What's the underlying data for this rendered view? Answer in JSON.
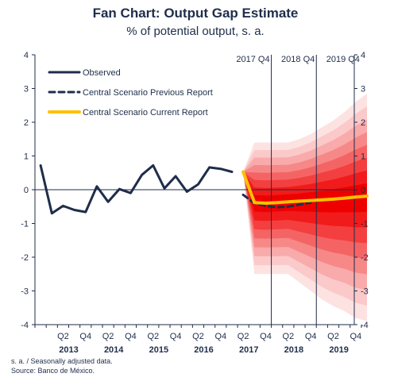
{
  "chart_data": {
    "type": "line",
    "title": "Fan Chart: Output Gap Estimate",
    "subtitle": "% of potential output, s. a.",
    "ylim": [
      -4,
      4
    ],
    "yticks": [
      -4,
      -3,
      -2,
      -1,
      0,
      1,
      2,
      3,
      4
    ],
    "x_quarter_labels": [
      "Q2",
      "Q4",
      "Q2",
      "Q4",
      "Q2",
      "Q4",
      "Q2",
      "Q4",
      "Q2",
      "Q4",
      "Q2",
      "Q4",
      "Q2",
      "Q4"
    ],
    "x_year_labels": [
      "2013",
      "2014",
      "2015",
      "2016",
      "2017",
      "2018",
      "2019"
    ],
    "vertical_markers": [
      "2017 Q4",
      "2018 Q4",
      "2019 Q4"
    ],
    "x_periods": [
      "2012Q4",
      "2013Q1",
      "2013Q2",
      "2013Q3",
      "2013Q4",
      "2014Q1",
      "2014Q2",
      "2014Q3",
      "2014Q4",
      "2015Q1",
      "2015Q2",
      "2015Q3",
      "2015Q4",
      "2016Q1",
      "2016Q2",
      "2016Q3",
      "2016Q4",
      "2017Q1",
      "2017Q2",
      "2017Q3",
      "2017Q4",
      "2018Q1",
      "2018Q2",
      "2018Q3",
      "2018Q4",
      "2019Q1",
      "2019Q2",
      "2019Q3",
      "2019Q4"
    ],
    "series": [
      {
        "name": "Observed",
        "color": "#1f2d4a",
        "style": "solid",
        "start_period": "2012Q4",
        "values": [
          0.72,
          -0.7,
          -0.48,
          -0.6,
          -0.66,
          0.1,
          -0.36,
          0.02,
          -0.1,
          0.44,
          0.72,
          0.04,
          0.4,
          -0.06,
          0.16,
          0.66,
          0.62,
          0.53
        ]
      },
      {
        "name": "Central Scenario Previous Report",
        "color": "#1f2d4a",
        "style": "dashed",
        "start_period": "2017Q2",
        "values": [
          -0.15,
          -0.4,
          -0.48,
          -0.52,
          -0.5,
          -0.44,
          -0.38
        ]
      },
      {
        "name": "Central Scenario Current Report",
        "color": "#ffc000",
        "style": "solid",
        "start_period": "2017Q2",
        "values": [
          0.53,
          -0.38,
          -0.4,
          -0.38,
          -0.36,
          -0.34,
          -0.32,
          -0.3,
          -0.28,
          -0.25,
          -0.22,
          -0.19
        ]
      }
    ],
    "fan": {
      "start_period": "2017Q2",
      "upper": [
        0.53,
        1.4,
        1.4,
        1.4,
        1.4,
        1.5,
        1.65,
        1.85,
        2.05,
        2.3,
        2.6,
        2.85
      ],
      "lower": [
        0.53,
        -2.5,
        -2.5,
        -2.5,
        -2.5,
        -2.75,
        -3.0,
        -3.25,
        -3.45,
        -3.6,
        -3.8,
        -3.9
      ],
      "colors": [
        "#fde2e2",
        "#fbc9c9",
        "#f9aaaa",
        "#f78888",
        "#f56464",
        "#f33f3f",
        "#f11b1b",
        "#ee0000"
      ]
    },
    "grid": false,
    "legend_placement": "top-left",
    "notes": [
      "s. a. / Seasonally adjusted data.",
      "Source: Banco de México."
    ]
  }
}
